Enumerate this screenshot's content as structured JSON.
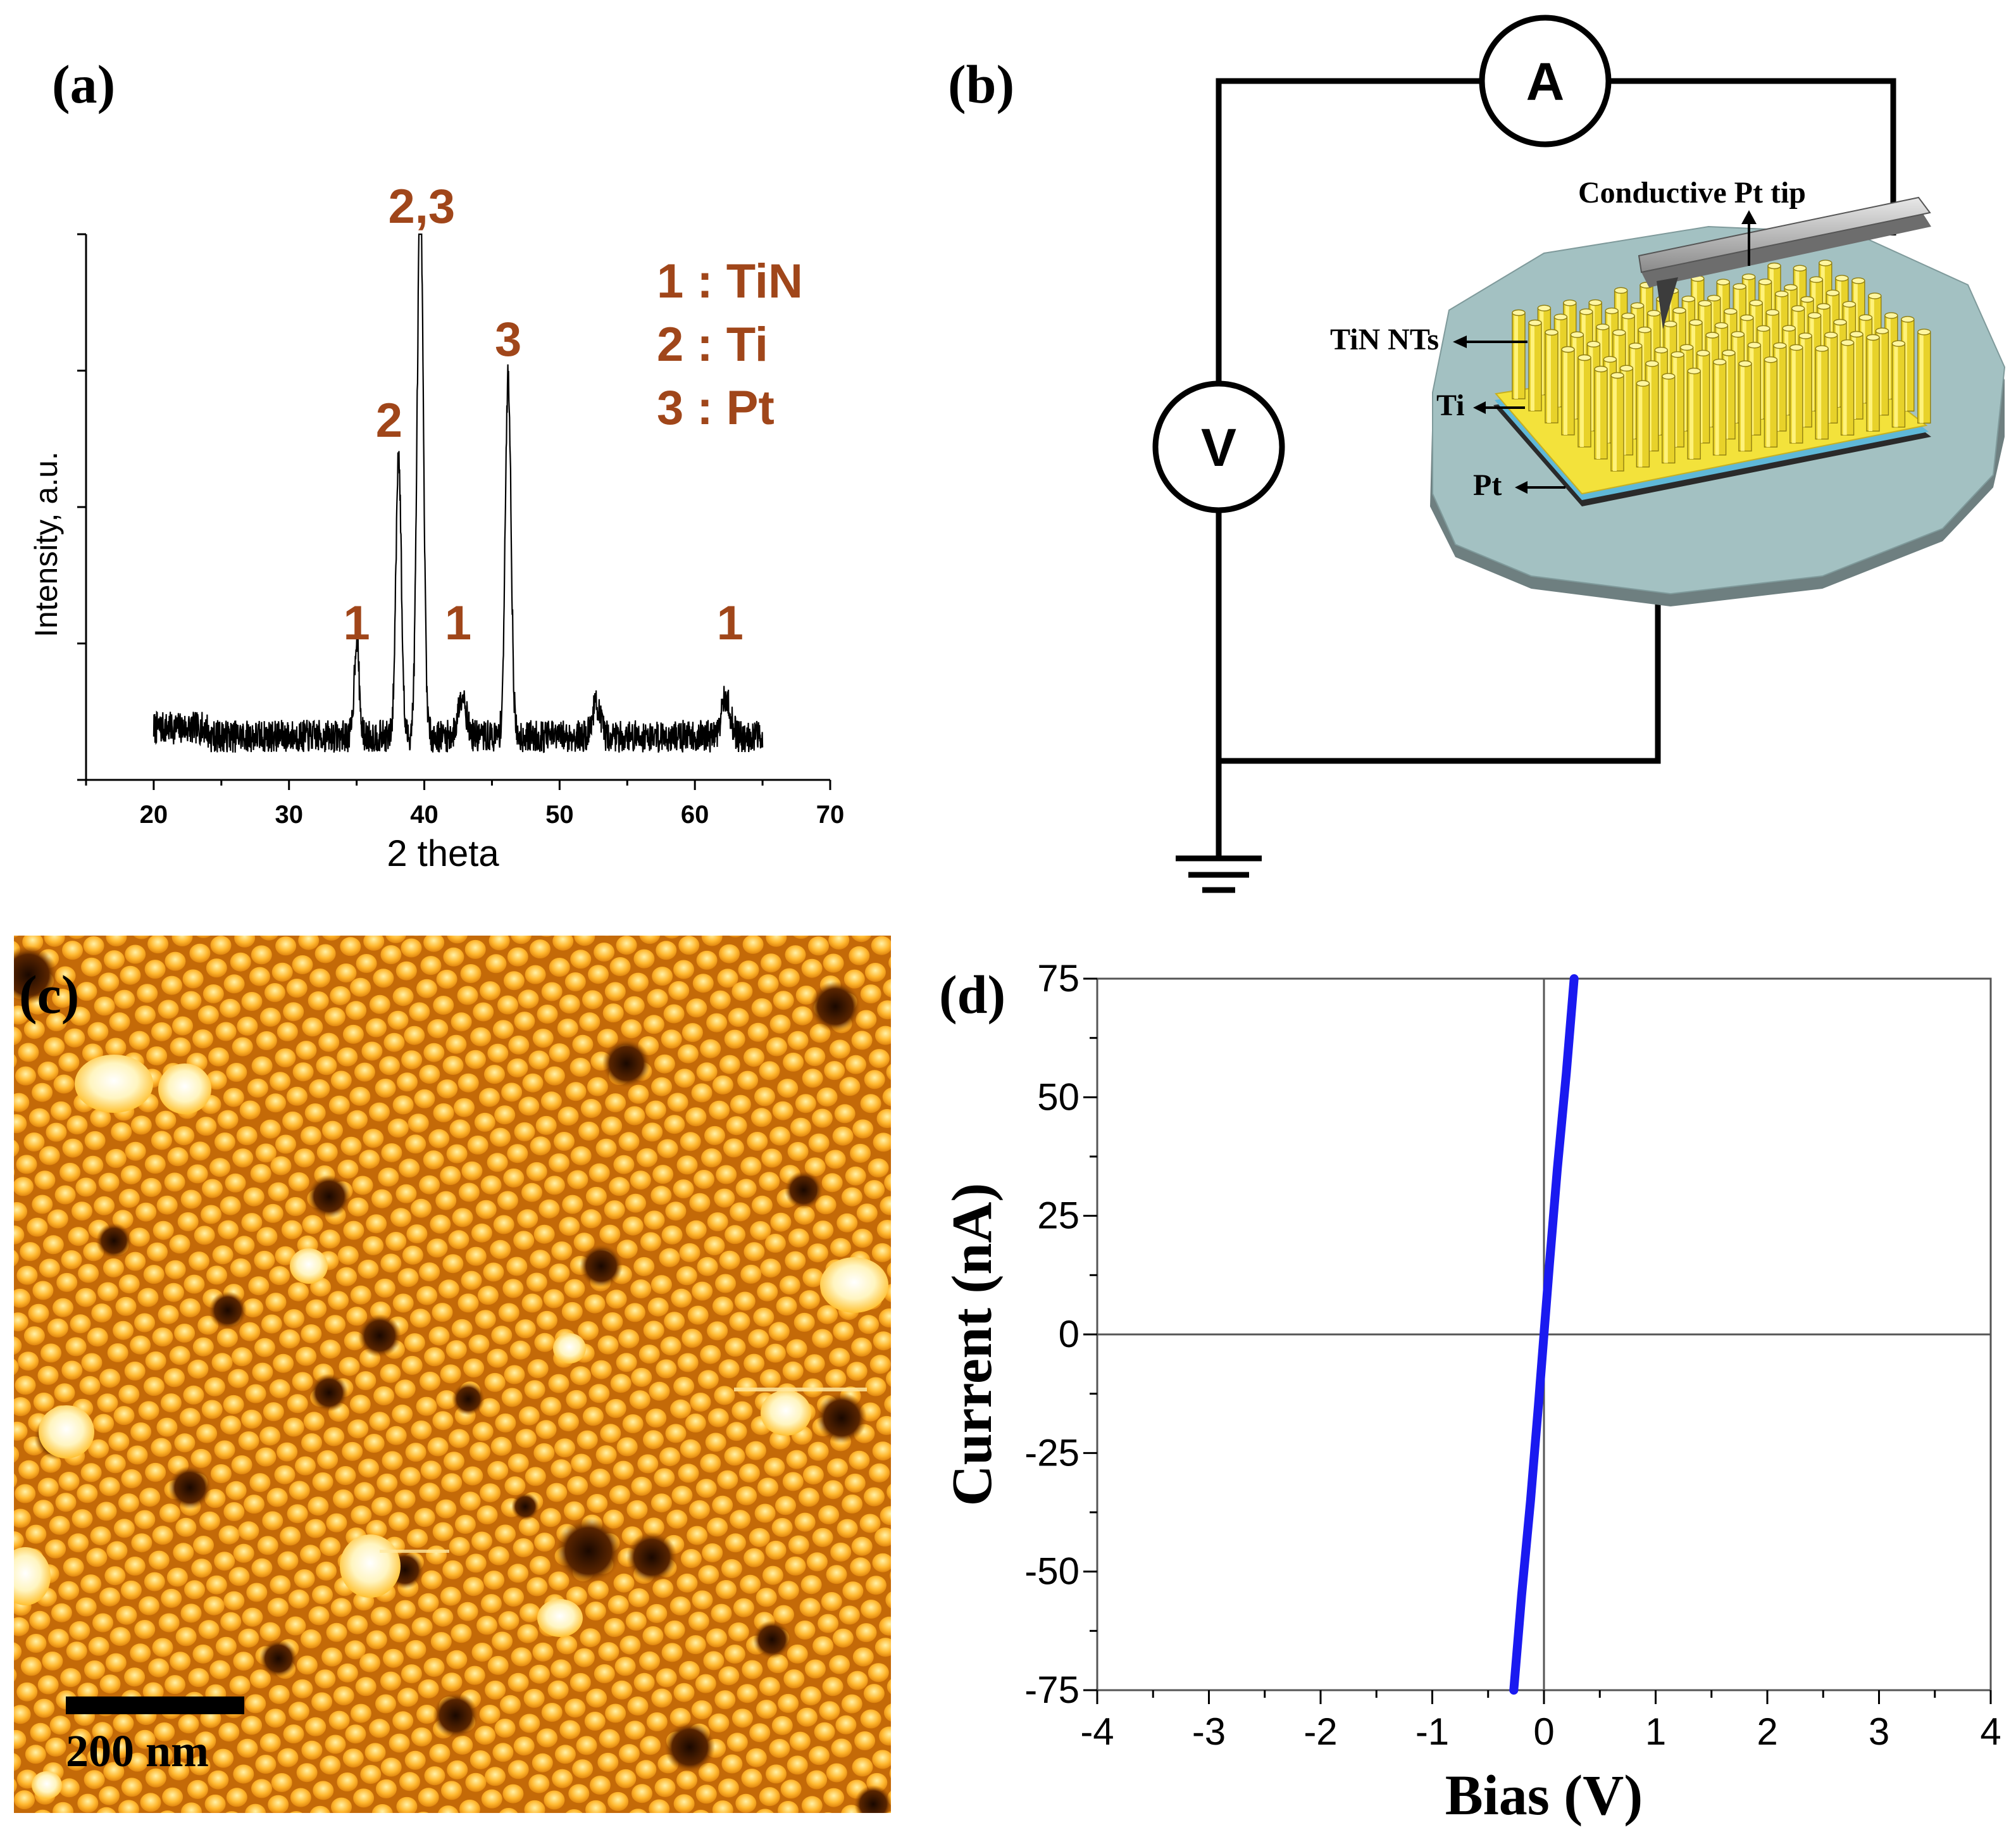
{
  "panels": {
    "a": {
      "label": "(a)"
    },
    "b": {
      "label": "(b)"
    },
    "c": {
      "label": "(c)"
    },
    "d": {
      "label": "(d)"
    }
  },
  "colors": {
    "peak_label": "#A0461A",
    "xrd_trace": "#000000",
    "iv_trace": "#1A1AF0",
    "nanotube": "#F2E23A",
    "disk": "#9FBFC0",
    "afm_base": "#E08A10"
  },
  "chart_data": [
    {
      "id": "xrd",
      "type": "line",
      "xlabel": "2 theta",
      "ylabel": "Intensity, a.u.",
      "xlim": [
        15,
        70
      ],
      "xticks": [
        20,
        30,
        40,
        50,
        60,
        70
      ],
      "x_range_measured": [
        20,
        65
      ],
      "baseline_relative": 0.08,
      "peaks": [
        {
          "x": 35.0,
          "height": 0.18,
          "width": 0.25
        },
        {
          "x": 38.1,
          "height": 0.52,
          "width": 0.28
        },
        {
          "x": 39.7,
          "height": 1.0,
          "width": 0.32
        },
        {
          "x": 42.8,
          "height": 0.08,
          "width": 0.4
        },
        {
          "x": 46.2,
          "height": 0.66,
          "width": 0.3
        },
        {
          "x": 52.7,
          "height": 0.06,
          "width": 0.4
        },
        {
          "x": 62.3,
          "height": 0.07,
          "width": 0.45
        }
      ],
      "peak_labels": [
        {
          "text": "1",
          "x": 35.0
        },
        {
          "text": "2",
          "x": 37.4
        },
        {
          "text": "2,3",
          "x": 39.8
        },
        {
          "text": "1",
          "x": 42.5
        },
        {
          "text": "3",
          "x": 46.2
        },
        {
          "text": "1",
          "x": 62.6
        }
      ],
      "legend": [
        "1 : TiN",
        "2 : Ti",
        "3 : Pt"
      ]
    },
    {
      "id": "iv",
      "type": "line",
      "xlabel": "Bias (V)",
      "ylabel": "Current (nA)",
      "xlim": [
        -4,
        4
      ],
      "ylim": [
        -75,
        75
      ],
      "xticks": [
        "-4",
        "-3",
        "-2",
        "-1",
        "0",
        "1",
        "2",
        "3",
        "4"
      ],
      "yticks": [
        "75",
        "50",
        "25",
        "0",
        "-25",
        "-50",
        "-75"
      ],
      "series": [
        {
          "name": "I-V",
          "x": [
            -0.27,
            -0.2,
            -0.12,
            -0.05,
            0.0,
            0.05,
            0.12,
            0.2,
            0.27
          ],
          "y": [
            -75,
            -55,
            -35,
            -15,
            0,
            15,
            35,
            55,
            75
          ]
        }
      ]
    }
  ],
  "schematic": {
    "ammeter": "A",
    "voltmeter": "V",
    "labels": {
      "tip": "Conductive Pt tip",
      "nanotubes": "TiN NTs",
      "ti": "Ti",
      "pt": "Pt"
    }
  },
  "afm": {
    "scale_bar": "200 nm"
  }
}
